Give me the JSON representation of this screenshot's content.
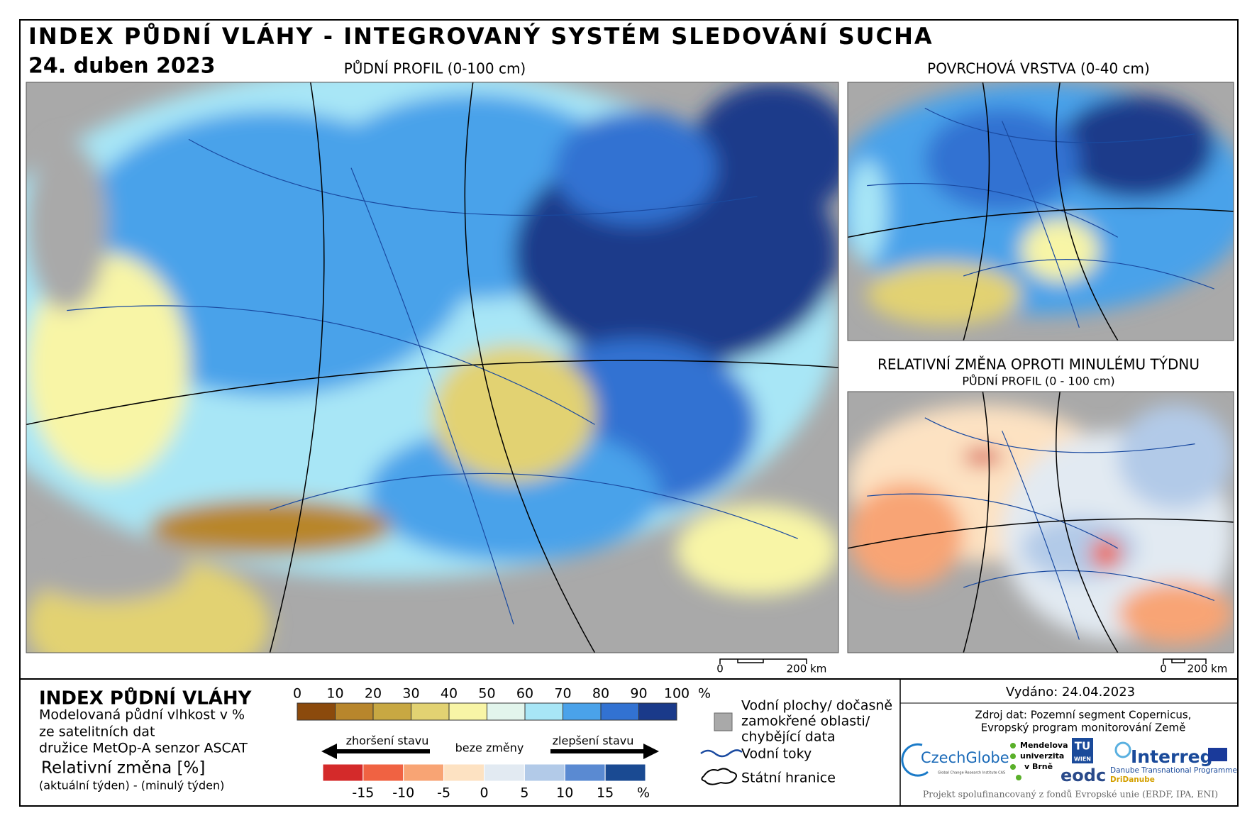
{
  "header": {
    "title": "INDEX PŮDNÍ VLÁHY - INTEGROVANÝ SYSTÉM SLEDOVÁNÍ SUCHA",
    "date": "24. duben 2023"
  },
  "maps": [
    {
      "title": "PŮDNÍ PROFIL (0-100 cm)",
      "scale": [
        "0",
        "200 km"
      ]
    },
    {
      "title": "POVRCHOVÁ VRSTVA (0-40 cm)"
    },
    {
      "title": "RELATIVNÍ ZMĚNA OPROTI MINULÉMU TÝDNU",
      "subtitle": "PŮDNÍ PROFIL (0 - 100 cm)",
      "scale": [
        "0",
        "200 km"
      ]
    }
  ],
  "legend": {
    "title": "INDEX PŮDNÍ VLÁHY",
    "lines": [
      "Modelovaná půdní vlhkost v %",
      "ze satelitních dat",
      "družice MetOp-A senzor ASCAT"
    ],
    "relative_title": "Relativní změna [%]",
    "relative_subtitle": "(aktuální týden) - (minulý týden)",
    "moisture_ticks": [
      0,
      10,
      20,
      30,
      40,
      50,
      60,
      70,
      80,
      90,
      100
    ],
    "moisture_unit": "%",
    "moisture_colors": [
      "#8b4a0c",
      "#b8862c",
      "#c8a842",
      "#e2d272",
      "#f8f5a6",
      "#e2f5ec",
      "#a8e6f6",
      "#4aa2ea",
      "#3272d2",
      "#1a3a8a"
    ],
    "arrows": {
      "worse": "zhoršení stavu",
      "none": "beze změny",
      "better": "zlepšení stavu"
    },
    "change_ticks": [
      -15,
      -10,
      -5,
      0,
      5,
      10,
      15
    ],
    "change_unit": "%",
    "change_colors": [
      "#d42a2a",
      "#f06242",
      "#f8a474",
      "#fde2c2",
      "#e2eaf2",
      "#b2cae8",
      "#5a8ad2",
      "#1a4a92"
    ],
    "key": {
      "water": [
        "Vodní plochy/ dočasně",
        "zamokřené oblasti/",
        "chybějící data"
      ],
      "rivers": "Vodní toky",
      "borders": "Státní hranice"
    }
  },
  "info": {
    "issued": "Vydáno: 24.04.2023",
    "source": [
      "Zdroj dat: Pozemní segment Copernicus,",
      "Evropský program monitorování Země"
    ],
    "logos": {
      "czechglobe": "CzechGlobe",
      "czechglobe_sub": "Global Change Research Institute CAS",
      "mendel": [
        "Mendelova",
        "univerzita",
        "v Brně"
      ],
      "tu": [
        "TU",
        "WIEN"
      ],
      "eodc": "eodc",
      "interreg": "Interreg",
      "interreg_sub": "Danube Transnational Programme",
      "interreg_project": "DriDanube"
    },
    "footer": "Projekt spolufinancovaný z fondů Evropské unie (ERDF, IPA, ENI)"
  }
}
